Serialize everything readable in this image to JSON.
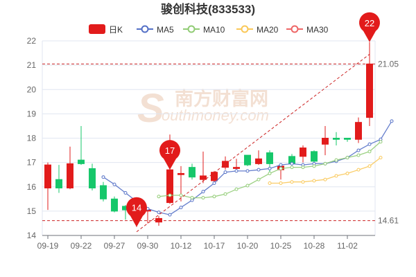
{
  "chart_data": {
    "type": "candlestick",
    "title": "骏创科技(833533)",
    "legend": [
      {
        "label": "日K",
        "color": "#e21b1b",
        "kind": "candle"
      },
      {
        "label": "MA5",
        "color": "#5470c6",
        "kind": "line"
      },
      {
        "label": "MA10",
        "color": "#91cc75",
        "kind": "line"
      },
      {
        "label": "MA20",
        "color": "#fac858",
        "kind": "line"
      },
      {
        "label": "MA30",
        "color": "#ee6666",
        "kind": "line"
      }
    ],
    "ylim": [
      14,
      22
    ],
    "y_ticks": [
      14,
      15,
      16,
      17,
      18,
      19,
      20,
      21,
      22
    ],
    "x_tick_labels": [
      "09-19",
      "09-22",
      "09-27",
      "09-30",
      "10-12",
      "10-17",
      "10-20",
      "10-25",
      "10-28",
      "11-02"
    ],
    "x_tick_indices": [
      0,
      3,
      6,
      9,
      12,
      15,
      18,
      21,
      24,
      27
    ],
    "candles": [
      {
        "o": 15.95,
        "c": 16.9,
        "h": 17.0,
        "l": 15.05
      },
      {
        "o": 16.3,
        "c": 15.95,
        "h": 16.9,
        "l": 15.75
      },
      {
        "o": 15.95,
        "c": 16.95,
        "h": 17.65,
        "l": 15.9
      },
      {
        "o": 17.1,
        "c": 16.95,
        "h": 18.5,
        "l": 16.9
      },
      {
        "o": 16.75,
        "c": 15.95,
        "h": 16.95,
        "l": 15.85
      },
      {
        "o": 16.05,
        "c": 15.5,
        "h": 16.2,
        "l": 15.4
      },
      {
        "o": 15.5,
        "c": 15.0,
        "h": 15.6,
        "l": 14.95
      },
      {
        "o": 15.2,
        "c": 15.05,
        "h": 15.25,
        "l": 14.65
      },
      {
        "o": 15.0,
        "c": 15.0,
        "h": 15.2,
        "l": 14.35
      },
      {
        "o": 15.0,
        "c": 15.05,
        "h": 15.15,
        "l": 14.5
      },
      {
        "o": 14.55,
        "c": 14.7,
        "h": 14.8,
        "l": 14.4
      },
      {
        "o": 15.35,
        "c": 16.7,
        "h": 18.15,
        "l": 15.3
      },
      {
        "o": 16.5,
        "c": 16.55,
        "h": 16.85,
        "l": 15.4
      },
      {
        "o": 16.8,
        "c": 16.4,
        "h": 16.95,
        "l": 16.3
      },
      {
        "o": 16.3,
        "c": 16.45,
        "h": 17.45,
        "l": 16.15
      },
      {
        "o": 16.25,
        "c": 16.6,
        "h": 16.65,
        "l": 16.15
      },
      {
        "o": 16.8,
        "c": 17.05,
        "h": 17.25,
        "l": 16.7
      },
      {
        "o": 16.75,
        "c": 16.8,
        "h": 17.15,
        "l": 16.65
      },
      {
        "o": 17.3,
        "c": 16.9,
        "h": 17.3,
        "l": 16.85
      },
      {
        "o": 16.95,
        "c": 17.15,
        "h": 17.5,
        "l": 16.9
      },
      {
        "o": 17.4,
        "c": 16.95,
        "h": 17.5,
        "l": 16.6
      },
      {
        "o": 16.7,
        "c": 16.85,
        "h": 16.95,
        "l": 16.3
      },
      {
        "o": 17.25,
        "c": 16.95,
        "h": 17.35,
        "l": 16.9
      },
      {
        "o": 17.25,
        "c": 17.6,
        "h": 17.7,
        "l": 17.0
      },
      {
        "o": 17.45,
        "c": 17.05,
        "h": 17.5,
        "l": 16.85
      },
      {
        "o": 17.75,
        "c": 18.0,
        "h": 18.5,
        "l": 17.3
      },
      {
        "o": 18.0,
        "c": 17.95,
        "h": 18.25,
        "l": 17.7
      },
      {
        "o": 18.0,
        "c": 17.95,
        "h": 18.0,
        "l": 17.85
      },
      {
        "o": 17.95,
        "c": 18.65,
        "h": 18.85,
        "l": 17.8
      },
      {
        "o": 18.85,
        "c": 21.05,
        "h": 21.95,
        "l": 18.5
      }
    ],
    "series": [
      {
        "name": "MA5",
        "color": "#5470c6",
        "start": 5,
        "values": [
          16.4,
          16.1,
          15.75,
          15.4,
          15.1,
          14.95,
          14.85,
          15.15,
          15.45,
          15.8,
          16.15,
          16.6,
          16.65,
          16.65,
          16.7,
          16.75,
          16.9,
          16.95,
          16.9,
          16.95,
          16.95,
          17.05,
          17.2,
          17.5,
          17.75,
          17.95,
          18.7
        ]
      },
      {
        "name": "MA10",
        "color": "#91cc75",
        "start": 10,
        "values": [
          15.6,
          15.65,
          15.65,
          15.55,
          15.55,
          15.6,
          15.7,
          15.9,
          16.05,
          16.3,
          16.55,
          16.75,
          16.8,
          16.8,
          16.85,
          16.95,
          17.1,
          17.2,
          17.3,
          17.45,
          17.85
        ]
      },
      {
        "name": "MA20",
        "color": "#fac858",
        "start": 20,
        "values": [
          16.15,
          16.15,
          16.2,
          16.2,
          16.25,
          16.3,
          16.45,
          16.55,
          16.7,
          16.85,
          17.2
        ]
      }
    ],
    "markers": [
      {
        "index": 11,
        "value": 17,
        "label": "17",
        "at": 16.7
      },
      {
        "index": 8,
        "value": 14,
        "label": "14",
        "at": 14.35
      },
      {
        "index": 29,
        "value": 22,
        "label": "22",
        "at": 21.95
      }
    ],
    "hlines": [
      {
        "value": 21.05,
        "label": "21.05"
      },
      {
        "value": 14.61,
        "label": "14.61"
      }
    ],
    "trendline": {
      "from": {
        "index": 8,
        "value": 14.15
      },
      "to": {
        "index": 29,
        "value": 21.45
      }
    },
    "watermark": {
      "main": "南方财富网",
      "sub": "outhmoney.com",
      "letter": "S"
    },
    "colors": {
      "up": "#e21b1b",
      "down": "#16c76a",
      "guide": "#cc2222",
      "grid": "#e0e6f1"
    }
  }
}
